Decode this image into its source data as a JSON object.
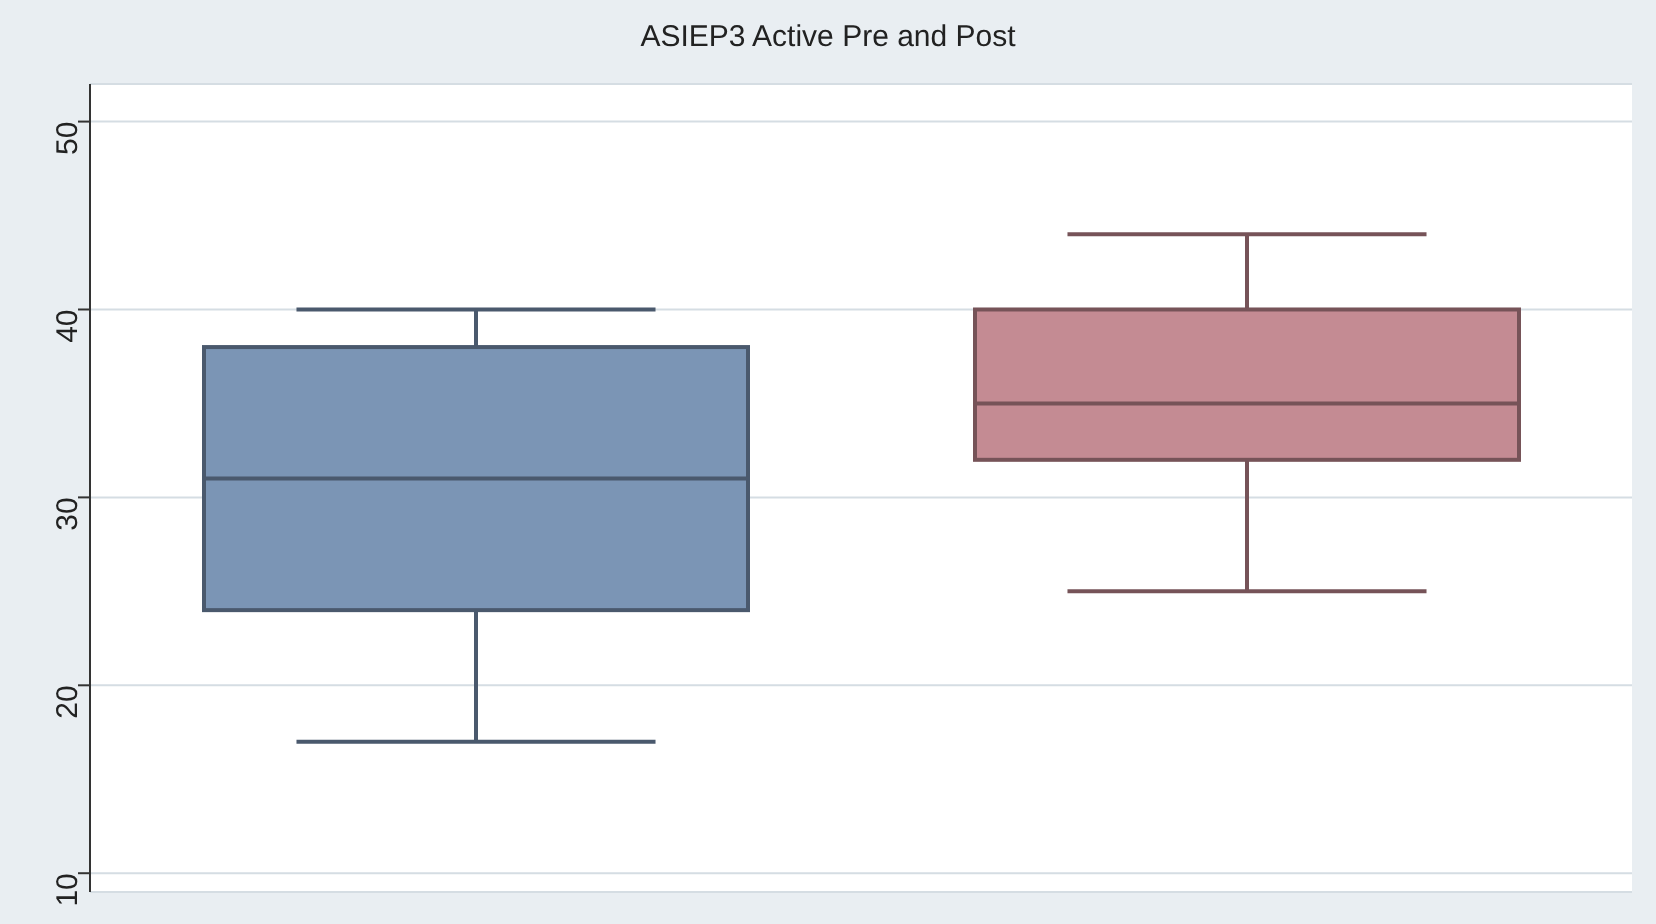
{
  "chart_data": {
    "type": "box",
    "title": "ASIEP3 Active Pre and Post",
    "categories": [
      null,
      null
    ],
    "boxes": [
      {
        "low": 17,
        "q1": 24,
        "median": 31,
        "q3": 38,
        "high": 40
      },
      {
        "low": 25,
        "q1": 32,
        "median": 35,
        "q3": 40,
        "high": 44
      }
    ],
    "colors": [
      "#7b95b5",
      "#c48b93"
    ],
    "ylim": [
      9,
      52
    ],
    "yticks": [
      10,
      20,
      30,
      40,
      50
    ],
    "grid": "y",
    "tick_labels": "y"
  }
}
